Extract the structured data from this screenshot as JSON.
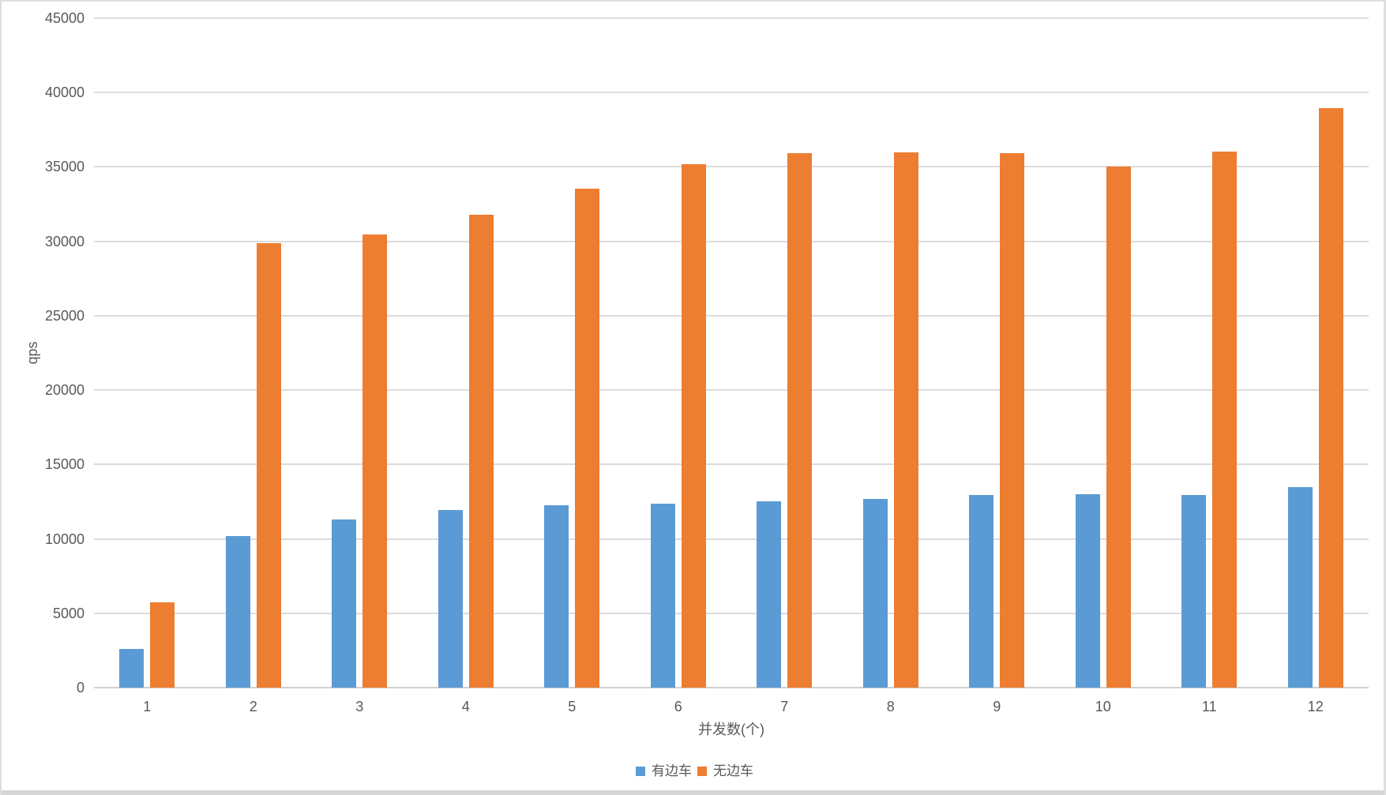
{
  "chart_data": {
    "type": "bar",
    "title": "",
    "categories": [
      "1",
      "2",
      "3",
      "4",
      "5",
      "6",
      "7",
      "8",
      "9",
      "10",
      "11",
      "12"
    ],
    "series": [
      {
        "name": "有边车",
        "color": "#5B9BD5",
        "values": [
          2600,
          10200,
          11300,
          11950,
          12250,
          12350,
          12550,
          12700,
          12950,
          13000,
          12950,
          13500
        ]
      },
      {
        "name": "无边车",
        "color": "#ED7D31",
        "values": [
          5750,
          29900,
          30450,
          31800,
          33550,
          35200,
          35900,
          36000,
          35900,
          35000,
          36050,
          38950
        ]
      }
    ],
    "xlabel": "并发数(个)",
    "ylabel": "qps",
    "ylim": [
      0,
      45000
    ],
    "ytick_step": 5000,
    "ytick_labels": [
      "0",
      "5000",
      "10000",
      "15000",
      "20000",
      "25000",
      "30000",
      "35000",
      "40000",
      "45000"
    ],
    "grid": true,
    "legend_position": "bottom",
    "axis_text_color": "#595959",
    "gridline_color": "#dcdcdc",
    "baseline_color": "#d0d0d0",
    "background_color": "#ffffff",
    "frame_color": "#dedede"
  }
}
